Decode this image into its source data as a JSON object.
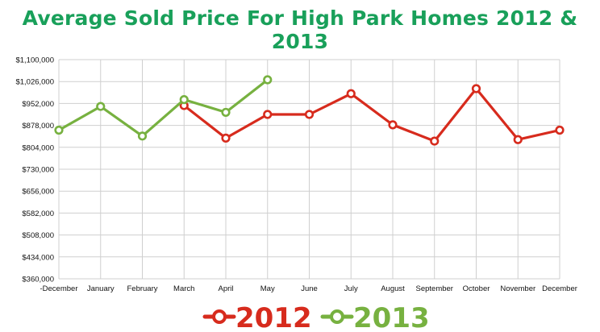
{
  "chart_data": {
    "type": "line",
    "title": "Average Sold Price For High Park Homes 2012 & 2013",
    "categories": [
      "-December",
      "January",
      "February",
      "March",
      "April",
      "May",
      "June",
      "July",
      "August",
      "September",
      "October",
      "November",
      "December"
    ],
    "y_ticks": [
      "$360,000",
      "$434,000",
      "$508,000",
      "$582,000",
      "$656,000",
      "$730,000",
      "$804,000",
      "$878,000",
      "$952,000",
      "$1,026,000",
      "$1,100,000"
    ],
    "ylim": [
      360000,
      1100000
    ],
    "grid": true,
    "legend_position": "bottom",
    "series": [
      {
        "name": "2012",
        "color": "#d72b1d",
        "values": [
          null,
          null,
          null,
          945000,
          835000,
          915000,
          915000,
          985000,
          880000,
          825000,
          1002000,
          830000,
          862000
        ]
      },
      {
        "name": "2013",
        "color": "#77b140",
        "values": [
          862000,
          942000,
          842000,
          965000,
          922000,
          1032000,
          null,
          null,
          null,
          null,
          null,
          null,
          null
        ]
      }
    ]
  },
  "legend": {
    "label_2012": "2012",
    "label_2013": "2013"
  }
}
